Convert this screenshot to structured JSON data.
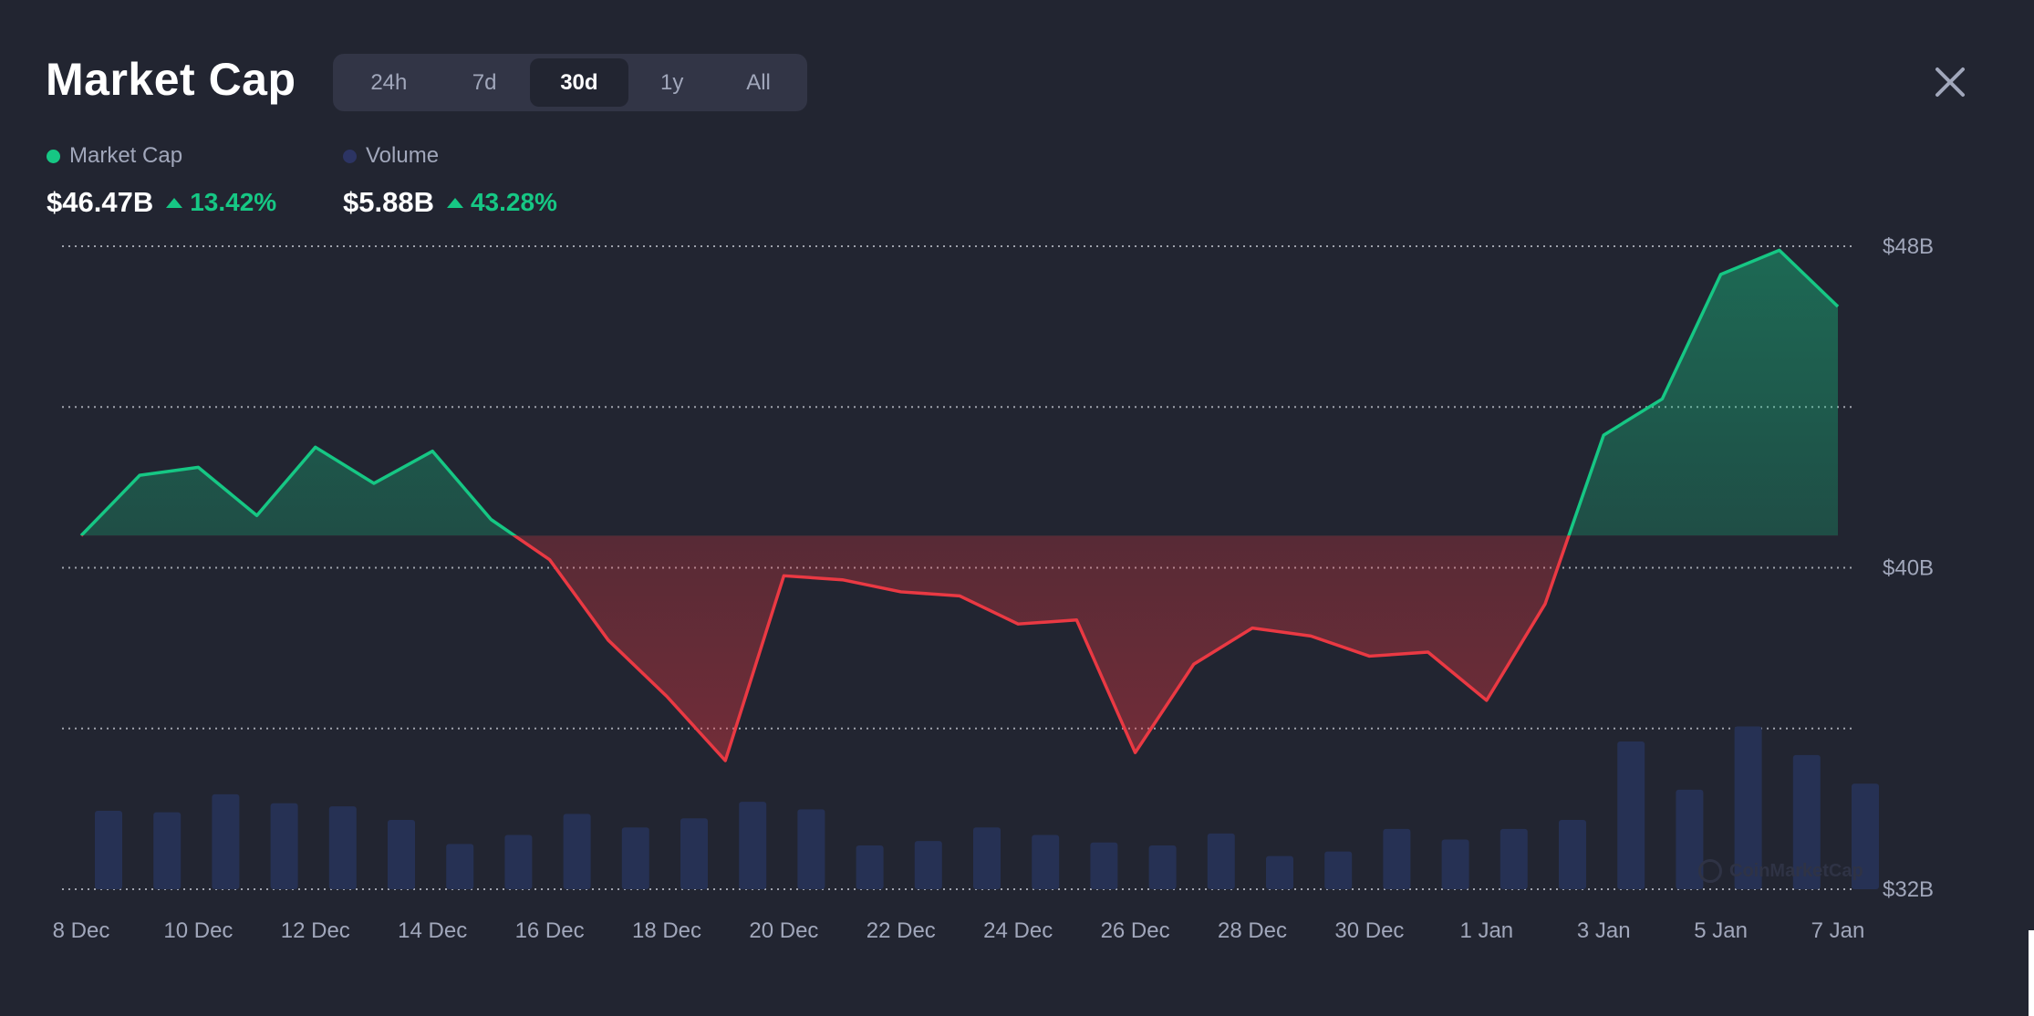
{
  "header": {
    "title": "Market Cap",
    "tabs": [
      {
        "label": "24h",
        "active": false
      },
      {
        "label": "7d",
        "active": false
      },
      {
        "label": "30d",
        "active": true
      },
      {
        "label": "1y",
        "active": false
      },
      {
        "label": "All",
        "active": false
      }
    ],
    "close_icon": "close-icon"
  },
  "legend": {
    "market_cap": {
      "label": "Market Cap",
      "color": "#16c784",
      "value": "$46.47B",
      "change": "13.42%"
    },
    "volume": {
      "label": "Volume",
      "color": "#2c3463",
      "value": "$5.88B",
      "change": "43.28%"
    }
  },
  "watermark": "CoinMarketCap",
  "colors": {
    "up": "#16c784",
    "down": "#ea3943",
    "volume_bar": "#263154",
    "background": "#222531"
  },
  "chart_data": {
    "type": "area",
    "x_tick_labels": [
      "8 Dec",
      "10 Dec",
      "12 Dec",
      "14 Dec",
      "16 Dec",
      "18 Dec",
      "20 Dec",
      "22 Dec",
      "24 Dec",
      "26 Dec",
      "28 Dec",
      "30 Dec",
      "1 Jan",
      "3 Jan",
      "5 Jan",
      "7 Jan"
    ],
    "y_tick_labels": [
      "$48B",
      "$40B",
      "$32B"
    ],
    "ylim": [
      32,
      48
    ],
    "y_unit": "B USD",
    "baseline": 40.8,
    "grid": "dotted horizontal",
    "series": [
      {
        "name": "Market Cap",
        "x": [
          "8 Dec",
          "9 Dec",
          "10 Dec",
          "11 Dec",
          "12 Dec",
          "13 Dec",
          "14 Dec",
          "15 Dec",
          "16 Dec",
          "17 Dec",
          "18 Dec",
          "19 Dec",
          "20 Dec",
          "21 Dec",
          "22 Dec",
          "23 Dec",
          "24 Dec",
          "25 Dec",
          "26 Dec",
          "27 Dec",
          "28 Dec",
          "29 Dec",
          "30 Dec",
          "31 Dec",
          "1 Jan",
          "2 Jan",
          "3 Jan",
          "4 Jan",
          "5 Jan",
          "6 Jan",
          "7 Jan"
        ],
        "values": [
          40.8,
          42.3,
          42.5,
          41.3,
          43.0,
          42.1,
          42.9,
          41.2,
          40.2,
          38.2,
          36.8,
          35.2,
          39.8,
          39.7,
          39.4,
          39.3,
          38.6,
          38.7,
          35.4,
          37.6,
          38.5,
          38.3,
          37.8,
          37.9,
          36.7,
          39.1,
          43.3,
          44.2,
          47.3,
          47.9,
          46.5
        ]
      },
      {
        "name": "Volume",
        "values": [
          5.2,
          5.1,
          6.3,
          5.7,
          5.5,
          4.6,
          3.0,
          3.6,
          5.0,
          4.1,
          4.7,
          5.8,
          5.3,
          2.9,
          3.2,
          4.1,
          3.6,
          3.1,
          2.9,
          3.7,
          2.2,
          2.5,
          4.0,
          3.3,
          4.0,
          4.6,
          9.8,
          6.6,
          10.8,
          8.9,
          7.0
        ]
      }
    ]
  }
}
